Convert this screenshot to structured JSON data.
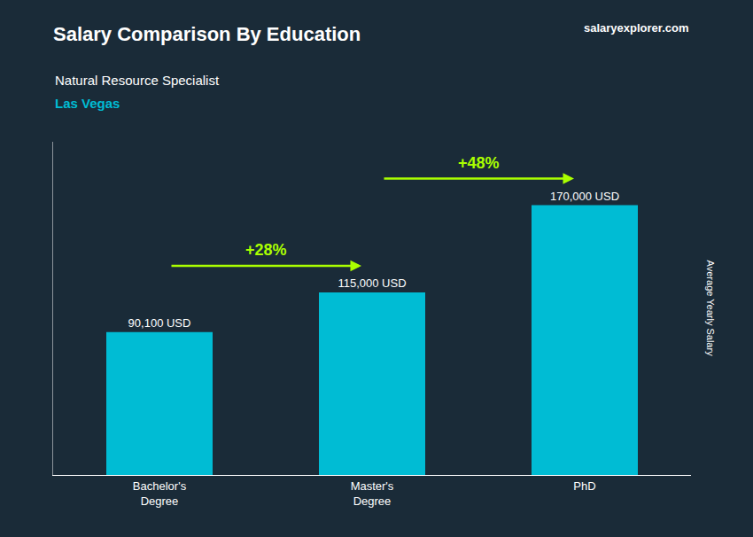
{
  "chart_data": {
    "type": "bar",
    "title": "Salary Comparison By Education",
    "subtitle": "Natural Resource Specialist",
    "location": "Las Vegas",
    "brand": "salaryexplorer.com",
    "ylabel": "Average Yearly Salary",
    "categories": [
      "Bachelor's\nDegree",
      "Master's\nDegree",
      "PhD"
    ],
    "values": [
      90100,
      115000,
      170000
    ],
    "value_labels": [
      "90,100 USD",
      "115,000 USD",
      "170,000 USD"
    ],
    "data_labels": true,
    "color": "#00bcd4",
    "annotations": [
      "+28%",
      "+48%"
    ],
    "annotation_color": "#aaff00",
    "background_color": "#1a2b38",
    "ylim": [
      0,
      210000
    ],
    "yticks": [],
    "tick_labels": "x",
    "grid": false
  }
}
